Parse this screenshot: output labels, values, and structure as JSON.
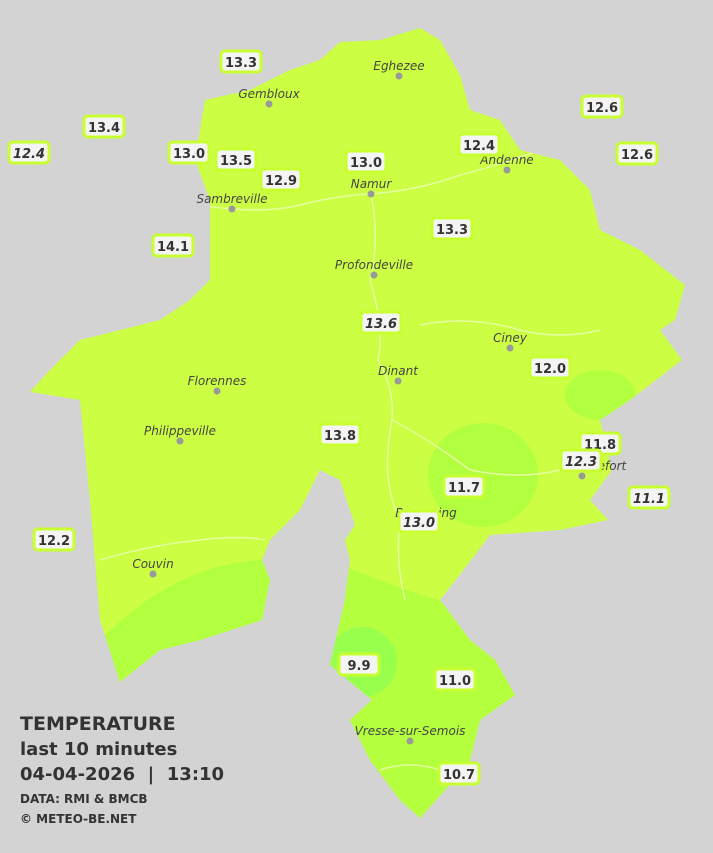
{
  "stations": [
    {
      "value": "13.3"
    },
    {
      "value": "13.4"
    },
    {
      "value": "12.4",
      "italic": true
    },
    {
      "value": "13.0"
    },
    {
      "value": "13.5"
    },
    {
      "value": "12.9"
    },
    {
      "value": "13.0"
    },
    {
      "value": "12.4"
    },
    {
      "value": "12.6"
    },
    {
      "value": "12.6"
    },
    {
      "value": "14.1"
    },
    {
      "value": "13.3"
    },
    {
      "value": "13.6",
      "italic": true
    },
    {
      "value": "12.0"
    },
    {
      "value": "13.8"
    },
    {
      "value": "11.8"
    },
    {
      "value": "12.3",
      "italic": true
    },
    {
      "value": "11.7"
    },
    {
      "value": "11.1",
      "italic": true
    },
    {
      "value": "13.0",
      "italic": true
    },
    {
      "value": "12.2"
    },
    {
      "value": "9.9"
    },
    {
      "value": "11.0"
    },
    {
      "value": "10.7"
    }
  ],
  "towns": [
    {
      "name": "Eghezee"
    },
    {
      "name": "Gembloux"
    },
    {
      "name": "Andenne"
    },
    {
      "name": "Namur"
    },
    {
      "name": "Sambreville"
    },
    {
      "name": "Profondeville"
    },
    {
      "name": "Ciney"
    },
    {
      "name": "Dinant"
    },
    {
      "name": "Florennes"
    },
    {
      "name": "Philippeville"
    },
    {
      "name": "Rochefort"
    },
    {
      "name": "Beauraing"
    },
    {
      "name": "Couvin"
    },
    {
      "name": "Vresse-sur-Semois"
    }
  ],
  "legend": {
    "title": "TEMPERATURE",
    "subtitle": "last 10 minutes",
    "datetime": "04-04-2026  |  13:10",
    "source": "DATA: RMI & BMCB",
    "copyright": "© METEO-BE.NET"
  }
}
